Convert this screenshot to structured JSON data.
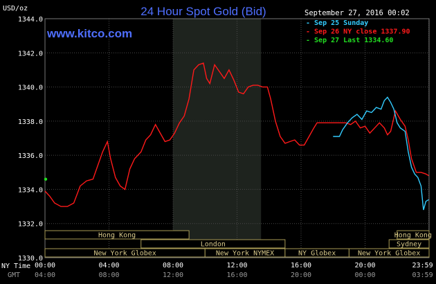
{
  "header": {
    "title": "24 Hour Spot Gold (Bid)",
    "unit": "USD/oz",
    "site": "www.kitco.com",
    "timestamp": "September 27, 2016 00:02"
  },
  "legend": [
    {
      "label": "Sep 25 Sunday",
      "color": "#33ccff"
    },
    {
      "label": "Sep 26 NY close 1337.90",
      "color": "#ff1a1a"
    },
    {
      "label": "Sep 27 Last 1334.60",
      "color": "#22dd22"
    }
  ],
  "markets": [
    {
      "label": "Hong Kong",
      "start": 0.0,
      "end": 9.0
    },
    {
      "label": "London",
      "start": 6.0,
      "end": 15.0
    },
    {
      "label": "New York Globex",
      "start": 0.0,
      "end": 10.0
    },
    {
      "label": "New York NYMEX",
      "start": 10.0,
      "end": 15.0
    },
    {
      "label": "NY Globex",
      "start": 15.0,
      "end": 19.0
    },
    {
      "label": "Hong Kong",
      "start": 22.0,
      "end": 24.0
    },
    {
      "label": "Sydney",
      "start": 21.5,
      "end": 24.0
    },
    {
      "label": "New York Globex",
      "start": 19.0,
      "end": 24.0
    }
  ],
  "axis_footer": {
    "row1_label": "NY Time",
    "row2_label": "GMT",
    "ny_ticks": [
      "00:00",
      "04:00",
      "08:00",
      "12:00",
      "16:00",
      "20:00",
      "23:59"
    ],
    "gmt_ticks": [
      "04:00",
      "08:00",
      "12:00",
      "16:00",
      "20:00",
      "00:00",
      "03:59"
    ]
  },
  "chart_data": {
    "type": "line",
    "title": "24 Hour Spot Gold (Bid)",
    "ylabel": "USD/oz",
    "xlabel": "NY Time",
    "ylim": [
      1330.0,
      1344.0
    ],
    "xlim": [
      0,
      24
    ],
    "y_ticks": [
      "1330.0",
      "1332.0",
      "1334.0",
      "1336.0",
      "1338.0",
      "1340.0",
      "1342.0",
      "1344.0"
    ],
    "x_tick_hours": [
      0,
      4,
      8,
      12,
      16,
      20,
      23.983
    ],
    "shaded_region": [
      8.0,
      13.5
    ],
    "grid": true,
    "series": [
      {
        "name": "Sep 26 NY close 1337.90",
        "color": "#ff1a1a",
        "points": [
          [
            0,
            1333.9
          ],
          [
            0.3,
            1333.6
          ],
          [
            0.6,
            1333.2
          ],
          [
            1.0,
            1333.0
          ],
          [
            1.4,
            1333.0
          ],
          [
            1.8,
            1333.2
          ],
          [
            2.2,
            1334.2
          ],
          [
            2.6,
            1334.5
          ],
          [
            3.0,
            1334.6
          ],
          [
            3.3,
            1335.4
          ],
          [
            3.6,
            1336.2
          ],
          [
            3.9,
            1336.8
          ],
          [
            4.1,
            1335.8
          ],
          [
            4.4,
            1334.7
          ],
          [
            4.7,
            1334.2
          ],
          [
            5.0,
            1334.0
          ],
          [
            5.3,
            1335.2
          ],
          [
            5.6,
            1335.8
          ],
          [
            6.0,
            1336.2
          ],
          [
            6.3,
            1336.9
          ],
          [
            6.6,
            1337.2
          ],
          [
            6.9,
            1337.8
          ],
          [
            7.2,
            1337.3
          ],
          [
            7.5,
            1336.8
          ],
          [
            7.8,
            1336.9
          ],
          [
            8.1,
            1337.3
          ],
          [
            8.4,
            1337.9
          ],
          [
            8.7,
            1338.3
          ],
          [
            9.0,
            1339.3
          ],
          [
            9.3,
            1341.0
          ],
          [
            9.6,
            1341.3
          ],
          [
            9.9,
            1341.4
          ],
          [
            10.1,
            1340.5
          ],
          [
            10.3,
            1340.2
          ],
          [
            10.6,
            1341.3
          ],
          [
            10.9,
            1340.9
          ],
          [
            11.2,
            1340.5
          ],
          [
            11.5,
            1341.0
          ],
          [
            11.8,
            1340.4
          ],
          [
            12.1,
            1339.7
          ],
          [
            12.4,
            1339.6
          ],
          [
            12.7,
            1340.0
          ],
          [
            13.0,
            1340.1
          ],
          [
            13.3,
            1340.1
          ],
          [
            13.6,
            1340.0
          ],
          [
            13.9,
            1340.0
          ],
          [
            14.1,
            1339.3
          ],
          [
            14.4,
            1338.0
          ],
          [
            14.7,
            1337.1
          ],
          [
            15.0,
            1336.7
          ],
          [
            15.3,
            1336.8
          ],
          [
            15.6,
            1336.9
          ],
          [
            15.9,
            1336.6
          ],
          [
            16.2,
            1336.6
          ],
          [
            16.5,
            1337.1
          ],
          [
            16.8,
            1337.6
          ],
          [
            17.0,
            1337.9
          ],
          [
            17.5,
            1337.9
          ],
          [
            18.0,
            1337.9
          ],
          [
            18.5,
            1337.9
          ],
          [
            18.8,
            1337.9
          ],
          [
            19.1,
            1337.8
          ],
          [
            19.4,
            1338.0
          ],
          [
            19.7,
            1337.6
          ],
          [
            20.0,
            1337.7
          ],
          [
            20.3,
            1337.3
          ],
          [
            20.6,
            1337.6
          ],
          [
            20.9,
            1337.9
          ],
          [
            21.2,
            1337.6
          ],
          [
            21.4,
            1337.2
          ],
          [
            21.6,
            1337.4
          ],
          [
            21.9,
            1338.6
          ],
          [
            22.2,
            1338.1
          ],
          [
            22.5,
            1337.7
          ],
          [
            22.7,
            1336.9
          ],
          [
            22.9,
            1335.8
          ],
          [
            23.2,
            1335.0
          ],
          [
            23.5,
            1335.0
          ],
          [
            23.8,
            1334.9
          ],
          [
            23.983,
            1334.8
          ]
        ]
      },
      {
        "name": "Sep 25 Sunday",
        "color": "#33ccff",
        "points": [
          [
            18.0,
            1337.1
          ],
          [
            18.4,
            1337.1
          ],
          [
            18.6,
            1337.5
          ],
          [
            18.9,
            1337.9
          ],
          [
            19.2,
            1338.2
          ],
          [
            19.5,
            1338.4
          ],
          [
            19.8,
            1338.1
          ],
          [
            20.1,
            1338.6
          ],
          [
            20.4,
            1338.5
          ],
          [
            20.7,
            1338.8
          ],
          [
            21.0,
            1338.7
          ],
          [
            21.2,
            1339.2
          ],
          [
            21.4,
            1339.4
          ],
          [
            21.6,
            1339.1
          ],
          [
            21.8,
            1338.7
          ],
          [
            22.0,
            1337.9
          ],
          [
            22.2,
            1337.6
          ],
          [
            22.5,
            1337.4
          ],
          [
            22.7,
            1336.2
          ],
          [
            22.9,
            1335.3
          ],
          [
            23.1,
            1334.9
          ],
          [
            23.3,
            1334.7
          ],
          [
            23.5,
            1334.2
          ],
          [
            23.65,
            1332.8
          ],
          [
            23.8,
            1333.3
          ],
          [
            23.983,
            1333.4
          ]
        ]
      }
    ],
    "last_point": {
      "name": "Sep 27 Last 1334.60",
      "x": 0.0,
      "y": 1334.6,
      "color": "#22dd22"
    }
  }
}
